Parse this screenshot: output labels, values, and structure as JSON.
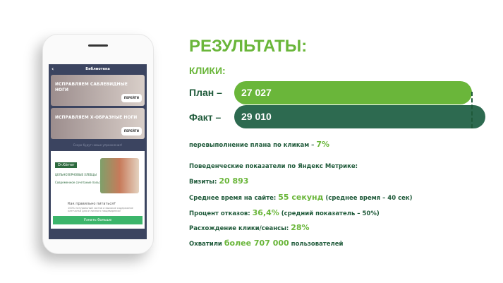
{
  "phone": {
    "header": "Библиотека",
    "cards": [
      {
        "title": "ИСПРАВЛЯЕМ САБЛЕВИДНЫЕ НОГИ",
        "button": "ПЕРЕЙТИ"
      },
      {
        "title": "ИСПРАВЛЯЕМ Х-ОБРАЗНЫЕ НОГИ",
        "button": "ПЕРЕЙТИ"
      }
    ],
    "hint": "Скоро будут новые упражнения!",
    "ad": {
      "brand": "Dr.Körner",
      "headline": "ЦЕЛЬНОЗЕРНОВЫЕ ХЛЕБЦЫ",
      "sub": "Современное сочетание пользы и сладости",
      "question": "Как правильно питаться?",
      "desc": "100% натуральный состав и высокое содержание клетчатки для отличного пищеварения!",
      "button": "Узнать больше"
    }
  },
  "title": "РЕЗУЛЬТАТЫ:",
  "subtitle": "КЛИКИ:",
  "plan": {
    "label": "План –",
    "value": "27 027",
    "color": "#6ab63a"
  },
  "fact": {
    "label": "Факт –",
    "value": "29 010",
    "color": "#2d6a50"
  },
  "over": {
    "text": "перевыполнение плана по кликам – ",
    "value": "7%"
  },
  "metrics_title": "Поведенческие показатели по Яндекс Метрике:",
  "visits": {
    "label": "Визиты: ",
    "value": "20 893"
  },
  "time": {
    "label": "Среднее время на сайте: ",
    "value": "55 секунд",
    "note": " (среднее время – 40 сек)"
  },
  "bounce": {
    "label": "Процент отказов: ",
    "value": "36,4%",
    "note": " (средний показатель – 50%)"
  },
  "diff": {
    "label": "Расхождение клики/сеансы: ",
    "value": "28%"
  },
  "reach": {
    "label": "Охватили ",
    "value": "более 707 000",
    "note": " пользователей"
  }
}
